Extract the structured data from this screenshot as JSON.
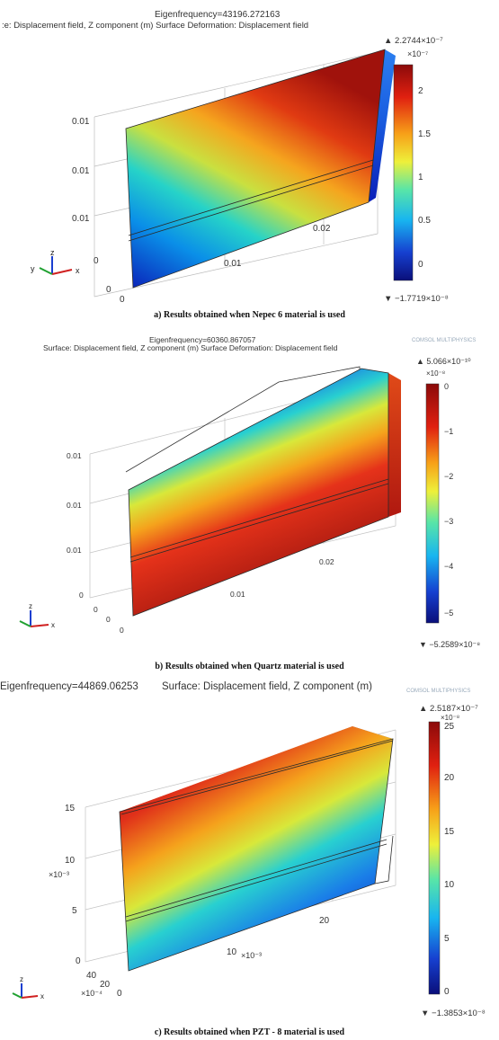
{
  "panels": [
    {
      "eigen": "Eigenfrequency=43196.272163",
      "subtitle": ":e: Displacement field, Z component (m)   Surface Deformation: Displacement field",
      "max_label": "▲ 2.2744×10⁻⁷",
      "scale_label": "×10⁻⁷",
      "ticks": [
        "2",
        "1.5",
        "1",
        "0.5",
        "0"
      ],
      "min_label": "▼ −1.7719×10⁻⁸",
      "z_ticks": [
        "0.01",
        "0.01",
        "0.01"
      ],
      "x_ticks": [
        "0.01",
        "0.02"
      ],
      "y_ticks": [
        "0",
        "0",
        "0"
      ],
      "caption": "a) Results obtained when Nepec 6 material is used"
    },
    {
      "eigen": "Eigenfrequency=60360.867057",
      "subtitle": "Surface: Displacement field, Z component (m)   Surface Deformation: Displacement field",
      "max_label": "▲ 5.066×10⁻¹⁰",
      "scale_label": "×10⁻⁸",
      "ticks": [
        "0",
        "−1",
        "−2",
        "−3",
        "−4",
        "−5"
      ],
      "min_label": "▼ −5.2589×10⁻⁸",
      "z_ticks": [
        "0.01",
        "0.01",
        "0.01",
        "0"
      ],
      "x_ticks": [
        "0.01",
        "0.02"
      ],
      "y_ticks": [
        "0",
        "0",
        "0"
      ],
      "caption": "b) Results obtained when Quartz material is used"
    },
    {
      "eigen": "Eigenfrequency=44869.06253",
      "subtitle": "Surface: Displacement field, Z component (m)",
      "max_label": "▲ 2.5187×10⁻⁷",
      "scale_label": "×10⁻⁸",
      "ticks": [
        "25",
        "20",
        "15",
        "10",
        "5",
        "0"
      ],
      "min_label": "▼ −1.3853×10⁻⁸",
      "z_ticks": [
        "15",
        "10",
        "5",
        "0"
      ],
      "z_exp": "×10⁻³",
      "x_ticks": [
        "10",
        "20"
      ],
      "x_exp": "×10⁻³",
      "y_ticks": [
        "40",
        "20",
        "0"
      ],
      "y_exp": "×10⁻⁴",
      "caption": "c) Results obtained when PZT - 8 material is used"
    }
  ],
  "axes": {
    "x": "x",
    "y": "y",
    "z": "z"
  },
  "logo": "COMSOL MULTIPHYSICS"
}
